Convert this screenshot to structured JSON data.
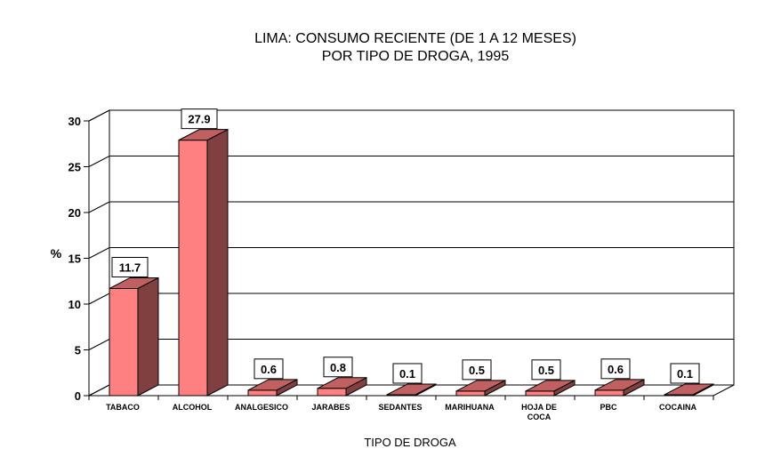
{
  "chart_data": {
    "type": "bar",
    "title_lines": [
      "LIMA: CONSUMO RECIENTE (DE 1 A 12 MESES)",
      "POR TIPO DE DROGA, 1995"
    ],
    "xlabel": "TIPO DE DROGA",
    "ylabel": "%",
    "ylim": [
      0,
      30
    ],
    "yticks": [
      "0",
      "5",
      "10",
      "15",
      "20",
      "25",
      "30"
    ],
    "categories": [
      [
        "TABACO"
      ],
      [
        "ALCOHOL"
      ],
      [
        "ANALGESICO"
      ],
      [
        "JARABES"
      ],
      [
        "SEDANTES"
      ],
      [
        "MARIHUANA"
      ],
      [
        "HOJA DE",
        "COCA"
      ],
      [
        "PBC"
      ],
      [
        "COCAINA"
      ]
    ],
    "values": [
      11.7,
      27.9,
      0.6,
      0.8,
      0.1,
      0.5,
      0.5,
      0.6,
      0.1
    ],
    "value_labels": [
      "11.7",
      "27.9",
      "0.6",
      "0.8",
      "0.1",
      "0.5",
      "0.5",
      "0.6",
      "0.1"
    ],
    "grid": true,
    "legend": "none",
    "colors": {
      "bar_front": "#ff8080",
      "bar_side": "#804040",
      "bar_top": "#c06060"
    }
  }
}
